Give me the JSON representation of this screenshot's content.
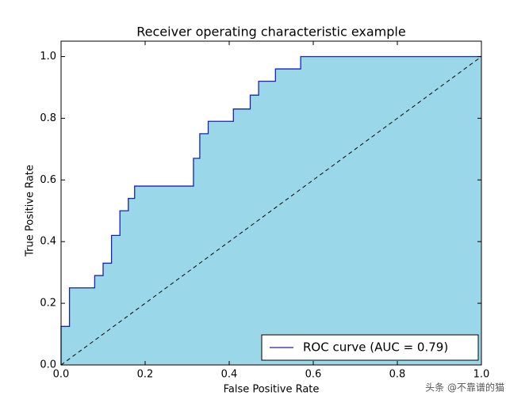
{
  "chart_data": {
    "type": "line",
    "title": "Receiver operating characteristic example",
    "x_label": "False Positive Rate",
    "y_label": "True Positive Rate",
    "xlim": [
      0,
      1
    ],
    "ylim": [
      0,
      1.05
    ],
    "xticks": [
      {
        "value": 0,
        "label": "0.0"
      },
      0.2,
      0.4,
      0.6,
      0.8,
      {
        "value": 1,
        "label": "1.0"
      }
    ],
    "yticks": [
      {
        "value": 0,
        "label": "0.0"
      },
      0.2,
      0.4,
      0.6,
      0.8,
      {
        "value": 1,
        "label": "1.0"
      }
    ],
    "legend": "lower right",
    "series": [
      {
        "name": "ROC curve (AUC = 0.79)",
        "color": "#2020b0",
        "fill_color": "#9ad7e8",
        "x": [
          0,
          0,
          0.02,
          0.02,
          0.08,
          0.08,
          0.1,
          0.1,
          0.12,
          0.12,
          0.14,
          0.14,
          0.16,
          0.16,
          0.175,
          0.175,
          0.315,
          0.315,
          0.33,
          0.33,
          0.35,
          0.35,
          0.41,
          0.41,
          0.45,
          0.45,
          0.47,
          0.47,
          0.51,
          0.51,
          0.57,
          0.57,
          1.0
        ],
        "values": [
          0,
          0.125,
          0.125,
          0.25,
          0.25,
          0.29,
          0.29,
          0.33,
          0.33,
          0.42,
          0.42,
          0.5,
          0.5,
          0.54,
          0.54,
          0.58,
          0.58,
          0.67,
          0.67,
          0.75,
          0.75,
          0.79,
          0.79,
          0.83,
          0.83,
          0.875,
          0.875,
          0.92,
          0.92,
          0.96,
          0.96,
          1.0,
          1.0
        ]
      }
    ],
    "reference_line": {
      "x": [
        0,
        1
      ],
      "values": [
        0,
        1
      ],
      "color": "#000000"
    },
    "watermark": "头条 @不靠谱的猫"
  }
}
